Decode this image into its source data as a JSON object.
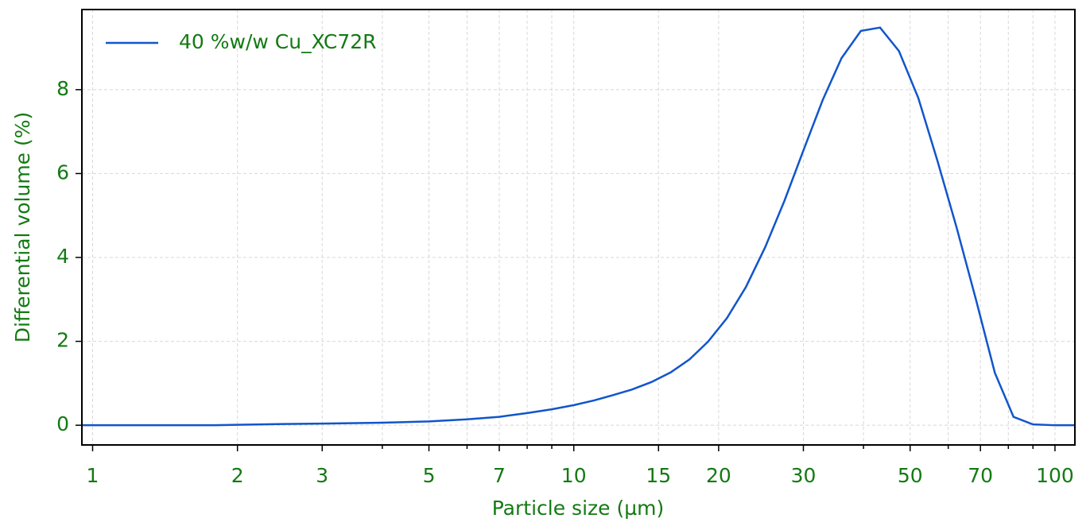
{
  "chart_data": {
    "type": "line",
    "xscale": "log",
    "x_label": "Particle size (µm)",
    "y_label": "Differential volume (%)",
    "x": [
      0.95,
      1.2,
      1.5,
      1.8,
      2,
      2.5,
      3,
      4,
      5,
      6,
      7,
      8,
      9,
      10,
      11,
      12,
      13.2,
      14.5,
      15.9,
      17.4,
      19,
      20.8,
      22.8,
      25,
      27.4,
      30,
      32.9,
      36,
      39.5,
      43.3,
      47.4,
      52,
      57,
      62.5,
      68.5,
      75,
      82,
      90,
      100,
      110
    ],
    "series": [
      {
        "name": "40 %w/w Cu_XC72R",
        "color": "#1155cc",
        "values": [
          0,
          0,
          0,
          0,
          0.01,
          0.03,
          0.04,
          0.06,
          0.09,
          0.14,
          0.2,
          0.29,
          0.38,
          0.48,
          0.59,
          0.71,
          0.85,
          1.03,
          1.26,
          1.57,
          1.99,
          2.55,
          3.3,
          4.25,
          5.35,
          6.55,
          7.75,
          8.75,
          9.4,
          9.48,
          8.92,
          7.8,
          6.3,
          4.7,
          3.0,
          1.25,
          0.2,
          0.02,
          0,
          0
        ]
      }
    ],
    "xlim": [
      0.95,
      110
    ],
    "ylim": [
      -0.47,
      9.91
    ],
    "xticks": [
      1,
      2,
      3,
      5,
      7,
      10,
      15,
      20,
      30,
      50,
      70,
      100
    ],
    "xminorticks": [
      4,
      6,
      8,
      9,
      40,
      60,
      80,
      90
    ],
    "yticks": [
      0,
      2,
      4,
      6,
      8
    ],
    "grid": true,
    "legend": "upper left"
  }
}
